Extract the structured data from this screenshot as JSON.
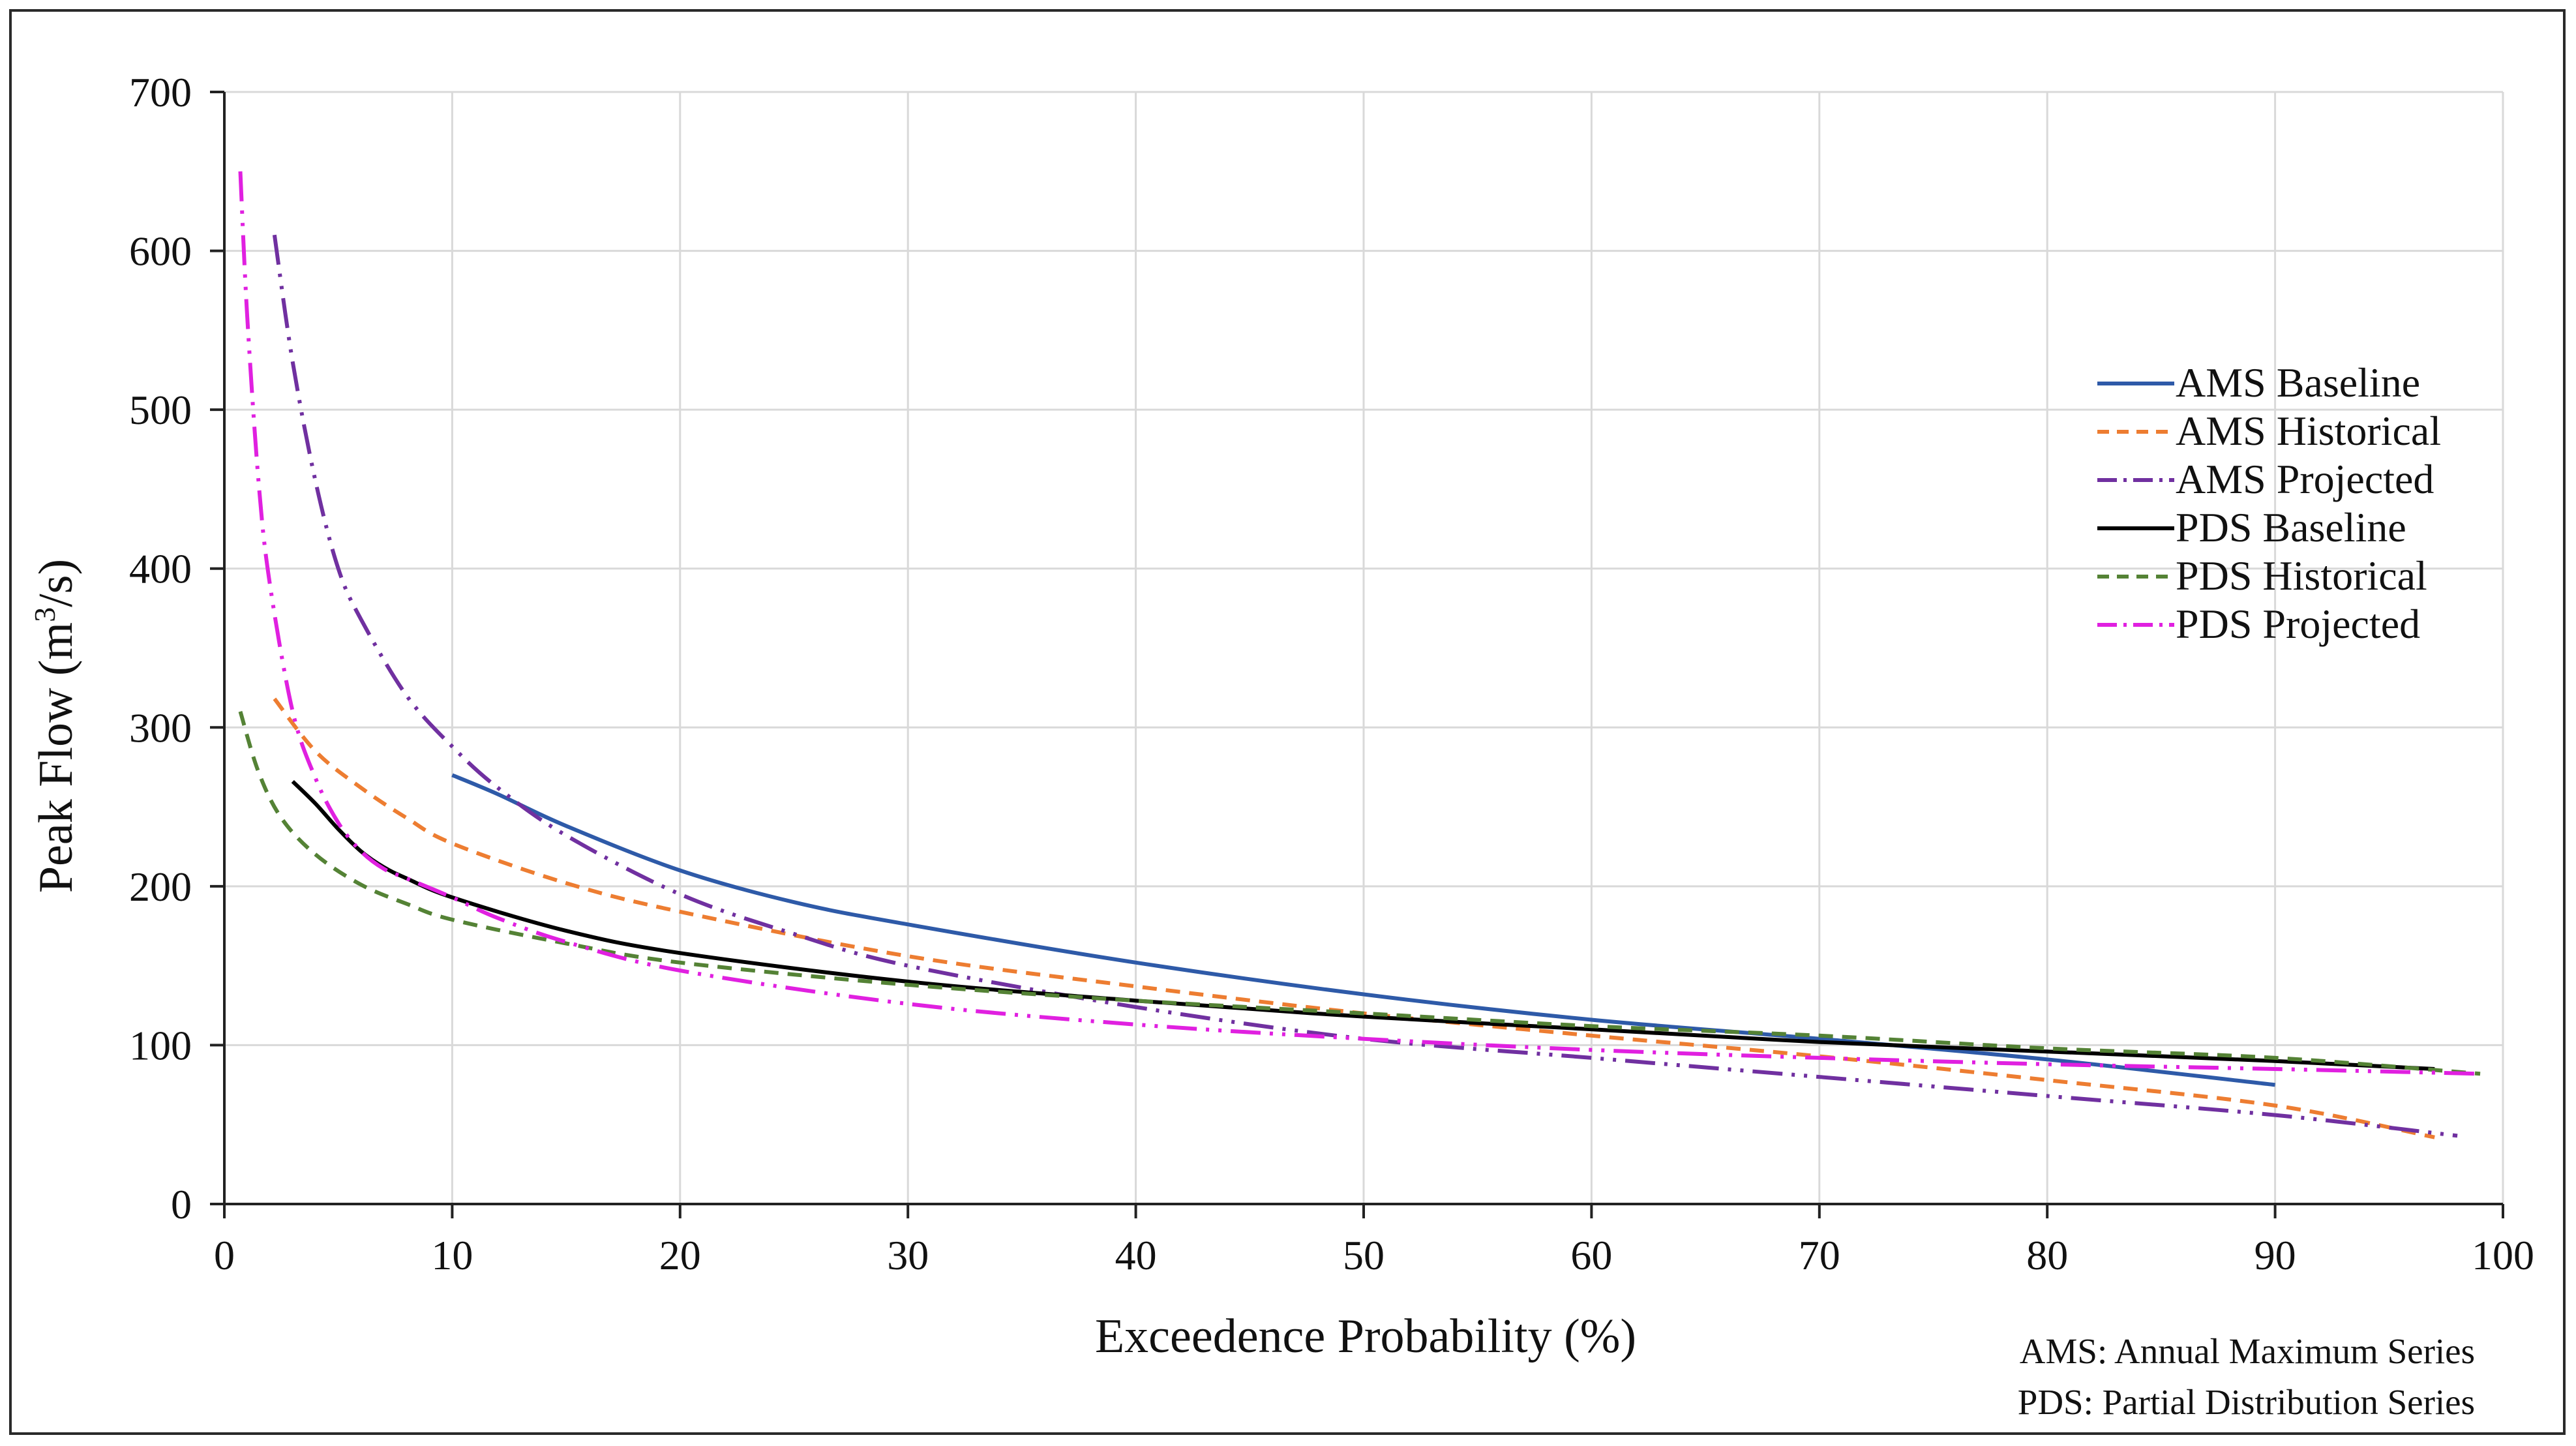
{
  "chart_data": {
    "type": "line",
    "title": "",
    "xlabel": "Exceedence Probability (%)",
    "ylabel_prefix": "Peak Flow (m",
    "ylabel_sup": "3",
    "ylabel_suffix": "/s)",
    "xlim": [
      0,
      100
    ],
    "ylim": [
      0,
      700
    ],
    "xticks": [
      0,
      10,
      20,
      30,
      40,
      50,
      60,
      70,
      80,
      90,
      100
    ],
    "yticks": [
      0,
      100,
      200,
      300,
      400,
      500,
      600,
      700
    ],
    "grid": true,
    "legend_position": "right",
    "series": [
      {
        "name": "AMS Baseline",
        "color": "#2E5AA8",
        "dash": "solid",
        "x": [
          10,
          12,
          15,
          20,
          25,
          30,
          40,
          50,
          60,
          70,
          80,
          90
        ],
        "y": [
          270,
          258,
          238,
          210,
          190,
          176,
          152,
          132,
          116,
          104,
          91,
          75
        ]
      },
      {
        "name": "AMS Historical",
        "color": "#ED7D31",
        "dash": "dash",
        "x": [
          2.2,
          4,
          6,
          8,
          10,
          15,
          20,
          30,
          40,
          50,
          60,
          70,
          80,
          90,
          97
        ],
        "y": [
          318,
          285,
          262,
          243,
          227,
          202,
          184,
          156,
          137,
          120,
          106,
          93,
          78,
          62,
          42
        ]
      },
      {
        "name": "AMS Projected",
        "color": "#7030A0",
        "dash": "dashdotdot",
        "x": [
          2.2,
          3,
          4,
          5,
          6,
          8,
          10,
          12,
          15,
          20,
          25,
          30,
          40,
          50,
          60,
          70,
          80,
          90,
          98
        ],
        "y": [
          610,
          530,
          455,
          400,
          368,
          320,
          288,
          262,
          232,
          195,
          170,
          150,
          124,
          104,
          92,
          80,
          68,
          56,
          43
        ]
      },
      {
        "name": "PDS Baseline",
        "color": "#000000",
        "dash": "solid",
        "x": [
          3,
          4,
          5,
          6,
          7,
          8,
          10,
          15,
          20,
          30,
          40,
          50,
          60,
          70,
          80,
          90,
          97
        ],
        "y": [
          266,
          252,
          236,
          222,
          212,
          205,
          193,
          172,
          158,
          140,
          128,
          118,
          110,
          102,
          96,
          90,
          85
        ]
      },
      {
        "name": "PDS Historical",
        "color": "#548235",
        "dash": "dash",
        "x": [
          0.7,
          1.5,
          2.5,
          4,
          6,
          8,
          10,
          15,
          20,
          30,
          40,
          50,
          60,
          70,
          80,
          90,
          99
        ],
        "y": [
          310,
          272,
          243,
          220,
          201,
          189,
          179,
          164,
          152,
          138,
          128,
          120,
          112,
          106,
          98,
          92,
          82
        ]
      },
      {
        "name": "PDS Projected",
        "color": "#E020E0",
        "dash": "dashdotdot",
        "x": [
          0.7,
          1,
          1.5,
          2,
          3,
          4,
          5,
          6,
          7,
          8,
          10,
          12,
          15,
          20,
          30,
          40,
          50,
          60,
          70,
          80,
          90,
          99
        ],
        "y": [
          650,
          560,
          455,
          390,
          310,
          268,
          240,
          222,
          211,
          205,
          193,
          180,
          165,
          147,
          126,
          113,
          104,
          97,
          92,
          88,
          85,
          82
        ]
      }
    ]
  },
  "notes": [
    "AMS: Annual Maximum Series",
    "PDS: Partial Distribution Series"
  ]
}
